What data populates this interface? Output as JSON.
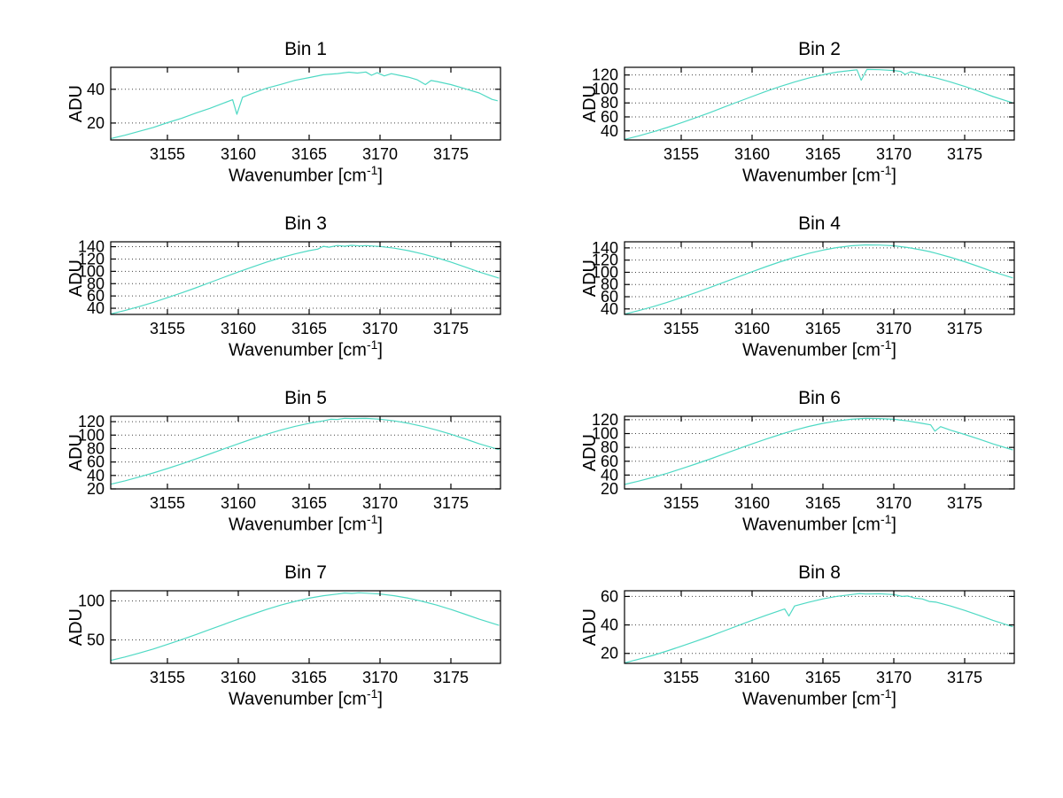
{
  "figure": {
    "background": "#ffffff",
    "line_color": "#4fd9c4",
    "grid_color": "#444444",
    "axis_color": "#000000"
  },
  "labels": {
    "ylabel": "ADU",
    "xlabel_pre": "Wavenumber [cm",
    "xlabel_sup": "-1",
    "xlabel_post": "]"
  },
  "chart_data": [
    {
      "type": "line",
      "title": "Bin 1",
      "ylabel": "ADU",
      "xlabel": "Wavenumber [cm^-1]",
      "xlim": [
        3151,
        3178.5
      ],
      "ylim": [
        10,
        53
      ],
      "xticks": [
        3155,
        3160,
        3165,
        3170,
        3175
      ],
      "yticks": [
        20,
        40
      ],
      "grid": "y-dotted",
      "legend": "none",
      "points": [
        [
          3151,
          10.8
        ],
        [
          3152,
          12.8
        ],
        [
          3153,
          15.1
        ],
        [
          3154,
          17.4
        ],
        [
          3155,
          20.2
        ],
        [
          3156,
          22.8
        ],
        [
          3157,
          25.9
        ],
        [
          3158,
          28.7
        ],
        [
          3159,
          31.9
        ],
        [
          3159.6,
          33.8
        ],
        [
          3159.9,
          25.2
        ],
        [
          3160.3,
          35.3
        ],
        [
          3161,
          37.6
        ],
        [
          3162,
          40.6
        ],
        [
          3163,
          42.9
        ],
        [
          3164,
          45.3
        ],
        [
          3165,
          46.9
        ],
        [
          3166,
          48.6
        ],
        [
          3167,
          49.3
        ],
        [
          3167.8,
          50.1
        ],
        [
          3168.4,
          49.6
        ],
        [
          3169,
          50.2
        ],
        [
          3169.4,
          48.3
        ],
        [
          3169.8,
          49.8
        ],
        [
          3170.3,
          47.9
        ],
        [
          3170.8,
          49.2
        ],
        [
          3171.5,
          48.0
        ],
        [
          3172,
          47.2
        ],
        [
          3172.6,
          45.7
        ],
        [
          3173.2,
          42.8
        ],
        [
          3173.6,
          45.2
        ],
        [
          3174,
          44.6
        ],
        [
          3175,
          42.8
        ],
        [
          3176,
          40.3
        ],
        [
          3177,
          37.8
        ],
        [
          3177.9,
          34.0
        ],
        [
          3178.3,
          33.2
        ]
      ]
    },
    {
      "type": "line",
      "title": "Bin 2",
      "ylabel": "ADU",
      "xlabel": "Wavenumber [cm^-1]",
      "xlim": [
        3151,
        3178.5
      ],
      "ylim": [
        27,
        131
      ],
      "xticks": [
        3155,
        3160,
        3165,
        3170,
        3175
      ],
      "yticks": [
        40,
        60,
        80,
        100,
        120
      ],
      "grid": "y-dotted",
      "legend": "none",
      "points": [
        [
          3151,
          27.7
        ],
        [
          3152,
          32.8
        ],
        [
          3153,
          38.5
        ],
        [
          3154,
          44.7
        ],
        [
          3155,
          51.5
        ],
        [
          3156,
          58.6
        ],
        [
          3157,
          66.0
        ],
        [
          3158,
          73.8
        ],
        [
          3159,
          81.5
        ],
        [
          3160,
          89.2
        ],
        [
          3161,
          96.6
        ],
        [
          3162,
          103.6
        ],
        [
          3163,
          110.0
        ],
        [
          3164,
          115.7
        ],
        [
          3165,
          120.4
        ],
        [
          3166,
          124.1
        ],
        [
          3167,
          126.6
        ],
        [
          3167.4,
          127.5
        ],
        [
          3167.7,
          112.5
        ],
        [
          3168.1,
          127.9
        ],
        [
          3169,
          127.6
        ],
        [
          3170,
          126.4
        ],
        [
          3170.5,
          125.0
        ],
        [
          3170.8,
          120.8
        ],
        [
          3171.2,
          124.6
        ],
        [
          3172,
          120.2
        ],
        [
          3173,
          115.7
        ],
        [
          3174,
          110.0
        ],
        [
          3175,
          103.6
        ],
        [
          3176,
          96.6
        ],
        [
          3177,
          89.2
        ],
        [
          3178.4,
          80.0
        ]
      ]
    },
    {
      "type": "line",
      "title": "Bin 3",
      "ylabel": "ADU",
      "xlabel": "Wavenumber [cm^-1]",
      "xlim": [
        3151,
        3178.5
      ],
      "ylim": [
        30,
        148
      ],
      "xticks": [
        3155,
        3160,
        3165,
        3170,
        3175
      ],
      "yticks": [
        40,
        60,
        80,
        100,
        120,
        140
      ],
      "grid": "y-dotted",
      "legend": "none",
      "points": [
        [
          3151,
          30.7
        ],
        [
          3152,
          36.4
        ],
        [
          3153,
          42.7
        ],
        [
          3154,
          49.6
        ],
        [
          3155,
          57.2
        ],
        [
          3156,
          65.0
        ],
        [
          3157,
          73.2
        ],
        [
          3158,
          81.8
        ],
        [
          3159,
          90.4
        ],
        [
          3160,
          98.9
        ],
        [
          3161,
          107.2
        ],
        [
          3162,
          115.0
        ],
        [
          3163,
          122.1
        ],
        [
          3164,
          128.3
        ],
        [
          3165,
          133.6
        ],
        [
          3165.6,
          136.0
        ],
        [
          3166,
          140.6
        ],
        [
          3166.4,
          139.2
        ],
        [
          3167,
          141.9
        ],
        [
          3167.5,
          140.8
        ],
        [
          3168,
          142.3
        ],
        [
          3168.6,
          141.2
        ],
        [
          3169,
          141.8
        ],
        [
          3170,
          140.4
        ],
        [
          3171,
          137.6
        ],
        [
          3172,
          133.6
        ],
        [
          3173,
          128.3
        ],
        [
          3174,
          122.1
        ],
        [
          3175,
          115.0
        ],
        [
          3176,
          107.2
        ],
        [
          3177,
          98.9
        ],
        [
          3178.4,
          88.9
        ]
      ]
    },
    {
      "type": "line",
      "title": "Bin 4",
      "ylabel": "ADU",
      "xlabel": "Wavenumber [cm^-1]",
      "xlim": [
        3151,
        3178.5
      ],
      "ylim": [
        31,
        150
      ],
      "xticks": [
        3155,
        3160,
        3165,
        3170,
        3175
      ],
      "yticks": [
        40,
        60,
        80,
        100,
        120,
        140
      ],
      "grid": "y-dotted",
      "legend": "none",
      "points": [
        [
          3151,
          31.4
        ],
        [
          3152,
          37.2
        ],
        [
          3153,
          43.6
        ],
        [
          3154,
          50.7
        ],
        [
          3155,
          58.4
        ],
        [
          3156,
          66.4
        ],
        [
          3157,
          74.8
        ],
        [
          3158,
          83.5
        ],
        [
          3159,
          92.3
        ],
        [
          3160,
          101.0
        ],
        [
          3161,
          109.4
        ],
        [
          3162,
          117.4
        ],
        [
          3163,
          124.6
        ],
        [
          3164,
          131.0
        ],
        [
          3165,
          136.4
        ],
        [
          3166,
          140.5
        ],
        [
          3167,
          143.4
        ],
        [
          3168,
          144.9
        ],
        [
          3169,
          144.7
        ],
        [
          3170,
          143.4
        ],
        [
          3171,
          140.5
        ],
        [
          3172,
          136.4
        ],
        [
          3172.5,
          134.0
        ],
        [
          3173,
          131.0
        ],
        [
          3174,
          124.6
        ],
        [
          3175,
          117.4
        ],
        [
          3176,
          109.4
        ],
        [
          3177,
          101.0
        ],
        [
          3178.4,
          90.8
        ]
      ]
    },
    {
      "type": "line",
      "title": "Bin 5",
      "ylabel": "ADU",
      "xlabel": "Wavenumber [cm^-1]",
      "xlim": [
        3151,
        3178.5
      ],
      "ylim": [
        20,
        128
      ],
      "xticks": [
        3155,
        3160,
        3165,
        3170,
        3175
      ],
      "yticks": [
        20,
        40,
        60,
        80,
        100,
        120
      ],
      "grid": "y-dotted",
      "legend": "none",
      "points": [
        [
          3151,
          27.0
        ],
        [
          3152,
          32.0
        ],
        [
          3153,
          37.6
        ],
        [
          3154,
          43.7
        ],
        [
          3155,
          50.3
        ],
        [
          3156,
          57.2
        ],
        [
          3157,
          64.5
        ],
        [
          3158,
          72.0
        ],
        [
          3159,
          79.6
        ],
        [
          3160,
          87.1
        ],
        [
          3161,
          94.4
        ],
        [
          3162,
          101.2
        ],
        [
          3163,
          107.5
        ],
        [
          3164,
          113.0
        ],
        [
          3165,
          117.6
        ],
        [
          3166,
          121.2
        ],
        [
          3166.5,
          123.5
        ],
        [
          3167,
          123.2
        ],
        [
          3167.5,
          125.0
        ],
        [
          3168,
          124.6
        ],
        [
          3169,
          124.9
        ],
        [
          3170,
          123.6
        ],
        [
          3171,
          121.2
        ],
        [
          3172,
          117.6
        ],
        [
          3173,
          113.0
        ],
        [
          3174,
          107.5
        ],
        [
          3175,
          101.2
        ],
        [
          3176,
          94.4
        ],
        [
          3177,
          87.1
        ],
        [
          3178.4,
          78.3
        ]
      ]
    },
    {
      "type": "line",
      "title": "Bin 6",
      "ylabel": "ADU",
      "xlabel": "Wavenumber [cm^-1]",
      "xlim": [
        3151,
        3178.5
      ],
      "ylim": [
        20,
        125
      ],
      "xticks": [
        3155,
        3160,
        3165,
        3170,
        3175
      ],
      "yticks": [
        20,
        40,
        60,
        80,
        100,
        120
      ],
      "grid": "y-dotted",
      "legend": "none",
      "points": [
        [
          3151,
          26.4
        ],
        [
          3152,
          31.3
        ],
        [
          3153,
          36.7
        ],
        [
          3154,
          42.6
        ],
        [
          3155,
          49.1
        ],
        [
          3156,
          55.9
        ],
        [
          3157,
          62.9
        ],
        [
          3158,
          70.3
        ],
        [
          3159,
          77.7
        ],
        [
          3160,
          85.0
        ],
        [
          3161,
          92.1
        ],
        [
          3162,
          98.8
        ],
        [
          3163,
          104.9
        ],
        [
          3164,
          110.3
        ],
        [
          3165,
          114.8
        ],
        [
          3166,
          118.2
        ],
        [
          3167,
          120.6
        ],
        [
          3168,
          121.9
        ],
        [
          3169,
          121.7
        ],
        [
          3170,
          120.6
        ],
        [
          3171,
          118.2
        ],
        [
          3172,
          114.8
        ],
        [
          3172.6,
          112.6
        ],
        [
          3172.9,
          103.5
        ],
        [
          3173.3,
          110.0
        ],
        [
          3174,
          104.9
        ],
        [
          3175,
          98.8
        ],
        [
          3176,
          92.1
        ],
        [
          3177,
          85.0
        ],
        [
          3178.4,
          76.4
        ]
      ]
    },
    {
      "type": "line",
      "title": "Bin 7",
      "ylabel": "ADU",
      "xlabel": "Wavenumber [cm^-1]",
      "xlim": [
        3151,
        3178.5
      ],
      "ylim": [
        20,
        113
      ],
      "xticks": [
        3155,
        3160,
        3165,
        3170,
        3175
      ],
      "yticks": [
        50,
        100
      ],
      "grid": "y-dotted",
      "legend": "none",
      "points": [
        [
          3151,
          23.8
        ],
        [
          3152,
          28.2
        ],
        [
          3153,
          33.1
        ],
        [
          3154,
          38.4
        ],
        [
          3155,
          44.3
        ],
        [
          3156,
          50.4
        ],
        [
          3157,
          56.7
        ],
        [
          3158,
          63.4
        ],
        [
          3159,
          70.0
        ],
        [
          3160,
          76.6
        ],
        [
          3161,
          83.0
        ],
        [
          3162,
          89.1
        ],
        [
          3163,
          94.6
        ],
        [
          3164,
          99.4
        ],
        [
          3165,
          103.5
        ],
        [
          3166,
          106.6
        ],
        [
          3167,
          108.8
        ],
        [
          3167.5,
          110.2
        ],
        [
          3168,
          109.6
        ],
        [
          3168.5,
          110.4
        ],
        [
          3169,
          109.9
        ],
        [
          3170,
          108.8
        ],
        [
          3171,
          106.6
        ],
        [
          3172,
          103.5
        ],
        [
          3173,
          99.4
        ],
        [
          3174,
          94.6
        ],
        [
          3175,
          89.1
        ],
        [
          3176,
          83.0
        ],
        [
          3177,
          76.6
        ],
        [
          3178.4,
          68.7
        ]
      ]
    },
    {
      "type": "line",
      "title": "Bin 8",
      "ylabel": "ADU",
      "xlabel": "Wavenumber [cm^-1]",
      "xlim": [
        3151,
        3178.5
      ],
      "ylim": [
        13,
        64
      ],
      "xticks": [
        3155,
        3160,
        3165,
        3170,
        3175
      ],
      "yticks": [
        20,
        40,
        60
      ],
      "grid": "y-dotted",
      "legend": "none",
      "points": [
        [
          3151,
          13.4
        ],
        [
          3152,
          15.9
        ],
        [
          3153,
          18.6
        ],
        [
          3154,
          21.7
        ],
        [
          3155,
          25.0
        ],
        [
          3156,
          28.4
        ],
        [
          3157,
          32.0
        ],
        [
          3158,
          35.7
        ],
        [
          3159,
          39.5
        ],
        [
          3160,
          43.2
        ],
        [
          3161,
          46.8
        ],
        [
          3162,
          50.2
        ],
        [
          3162.3,
          51.2
        ],
        [
          3162.6,
          46.3
        ],
        [
          3163,
          53.3
        ],
        [
          3164,
          56.0
        ],
        [
          3165,
          58.3
        ],
        [
          3166,
          60.1
        ],
        [
          3167,
          61.3
        ],
        [
          3167.6,
          62.1
        ],
        [
          3168,
          61.7
        ],
        [
          3169,
          61.9
        ],
        [
          3170,
          61.3
        ],
        [
          3170.6,
          60.0
        ],
        [
          3171,
          60.3
        ],
        [
          3171.5,
          58.8
        ],
        [
          3172,
          58.3
        ],
        [
          3172.5,
          56.5
        ],
        [
          3173,
          56.0
        ],
        [
          3174,
          53.3
        ],
        [
          3175,
          50.2
        ],
        [
          3176,
          46.8
        ],
        [
          3177,
          43.2
        ],
        [
          3178.4,
          38.7
        ]
      ]
    }
  ]
}
